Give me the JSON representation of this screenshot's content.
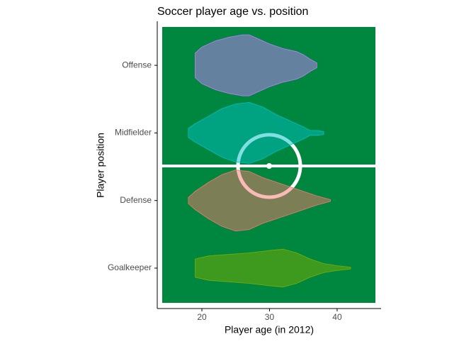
{
  "chart_data": {
    "type": "violin",
    "title": "Soccer player age vs. position",
    "x_label": "Player age (in 2012)",
    "y_label": "Player position",
    "xlim": [
      13.4,
      46.5
    ],
    "xticks": [
      20,
      30,
      40
    ],
    "series": [
      {
        "name": "Goalkeeper",
        "color": "#7CAE00",
        "ages": [
          19,
          21,
          24,
          27,
          30,
          32,
          34,
          36,
          38,
          40,
          42
        ],
        "widths": [
          0.3,
          0.4,
          0.45,
          0.5,
          0.58,
          0.62,
          0.5,
          0.3,
          0.15,
          0.08,
          0.03
        ]
      },
      {
        "name": "Defense",
        "color": "#F8766D",
        "ages": [
          18,
          19,
          21,
          23,
          25,
          27,
          29,
          31,
          33,
          35,
          37,
          39
        ],
        "widths": [
          0.1,
          0.3,
          0.6,
          0.85,
          1.0,
          0.95,
          0.75,
          0.6,
          0.45,
          0.3,
          0.15,
          0.03
        ]
      },
      {
        "name": "Midfielder",
        "color": "#00BFC4",
        "ages": [
          18,
          19,
          21,
          23,
          25,
          27,
          29,
          31,
          33,
          35,
          36,
          37,
          38
        ],
        "widths": [
          0.15,
          0.3,
          0.55,
          0.8,
          0.95,
          1.0,
          0.85,
          0.6,
          0.4,
          0.2,
          0.08,
          0.08,
          0.05
        ]
      },
      {
        "name": "Offense",
        "color": "#C77CFF",
        "ages": [
          19,
          20,
          22,
          24,
          26,
          27,
          28,
          30,
          32,
          34,
          35,
          36,
          37
        ],
        "widths": [
          0.4,
          0.6,
          0.8,
          0.92,
          1.0,
          1.0,
          0.9,
          0.7,
          0.55,
          0.45,
          0.35,
          0.2,
          0.08
        ]
      }
    ]
  }
}
